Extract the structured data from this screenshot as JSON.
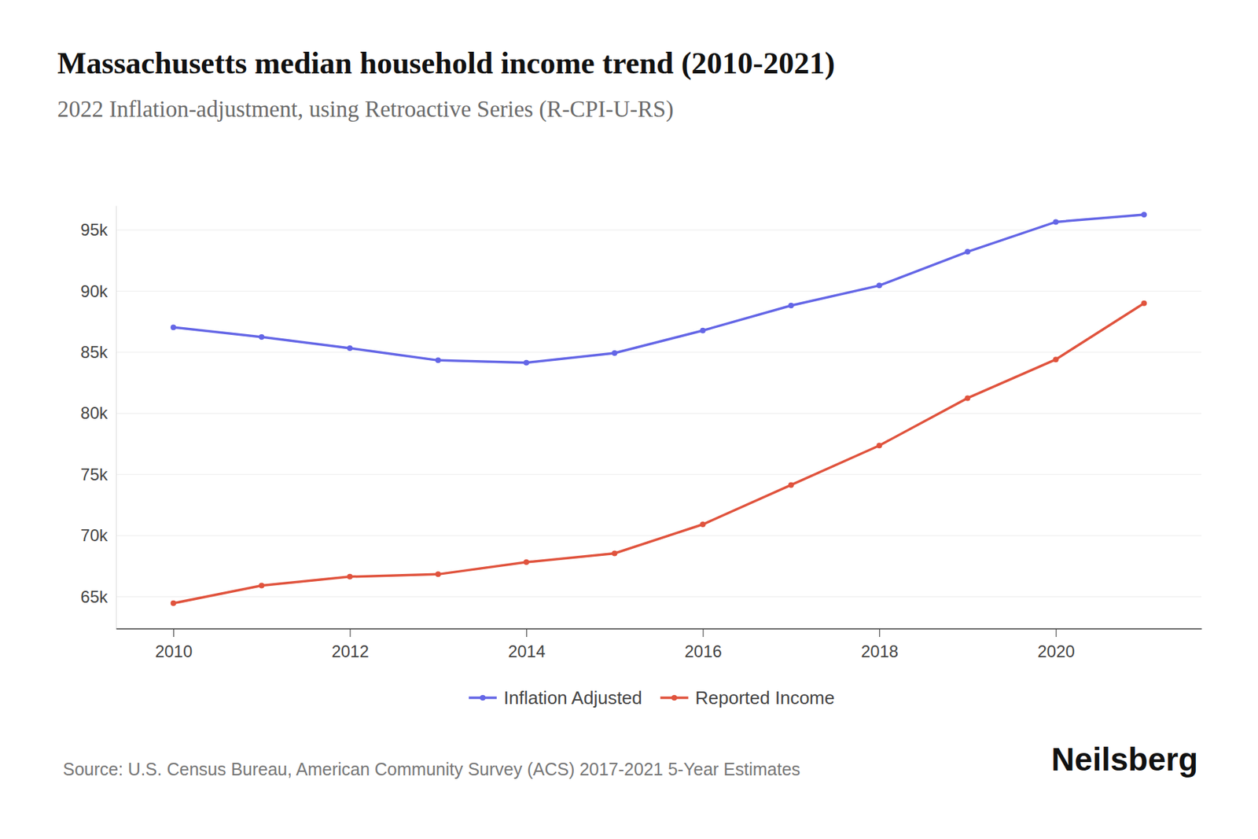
{
  "chart_data": {
    "type": "line",
    "title": "Massachusetts median household income trend (2010-2021)",
    "subtitle": "2022 Inflation-adjustment, using Retroactive Series (R-CPI-U-RS)",
    "source": "Source: U.S. Census Bureau, American Community Survey (ACS) 2017-2021 5-Year Estimates",
    "brand": "Neilsberg",
    "x": [
      2010,
      2011,
      2012,
      2013,
      2014,
      2015,
      2016,
      2017,
      2018,
      2019,
      2020,
      2021
    ],
    "series": [
      {
        "name": "Inflation Adjusted",
        "color": "#6466e6",
        "marker": "circle",
        "values": [
          87040,
          86250,
          85330,
          84340,
          84150,
          84930,
          86780,
          88820,
          90460,
          93220,
          95660,
          96250
        ]
      },
      {
        "name": "Reported Income",
        "color": "#e0533d",
        "marker": "circle",
        "values": [
          64470,
          65920,
          66640,
          66840,
          67830,
          68550,
          70920,
          74140,
          77370,
          81250,
          84410,
          89010
        ]
      }
    ],
    "xlim": [
      2009.35,
      2021.65
    ],
    "xticks": [
      2010,
      2012,
      2014,
      2016,
      2018,
      2020
    ],
    "ylim": [
      62400,
      97000
    ],
    "yticks": [
      {
        "value": 65000,
        "label": "65k"
      },
      {
        "value": 70000,
        "label": "70k"
      },
      {
        "value": 75000,
        "label": "75k"
      },
      {
        "value": 80000,
        "label": "80k"
      },
      {
        "value": 85000,
        "label": "85k"
      },
      {
        "value": 90000,
        "label": "90k"
      },
      {
        "value": 95000,
        "label": "95k"
      }
    ],
    "grid": true,
    "legend": "bottom"
  }
}
